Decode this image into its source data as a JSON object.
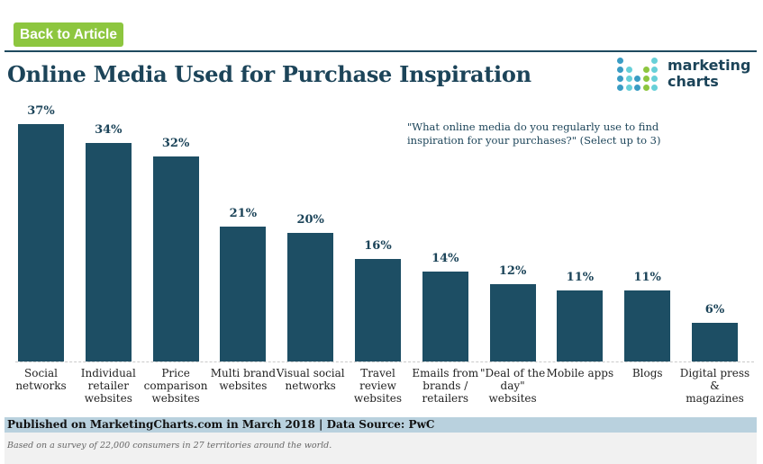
{
  "nav": {
    "back_label": "Back to Article",
    "back_color": "#8dc63f"
  },
  "header": {
    "title": "Online Media Used for Purchase Inspiration"
  },
  "logo": {
    "line1": "marketing",
    "line2": "charts"
  },
  "subtitle": "\"What online media do you regularly use to find inspiration for your purchases?\" (Select up to 3)",
  "footer": {
    "published": "Published on MarketingCharts.com in March 2018 | Data Source: PwC",
    "note": "Based on a survey of 22,000 consumers in 27 territories around the world."
  },
  "colors": {
    "bar": "#1d4e64",
    "title": "#1c4459",
    "pub_bar": "#b9d1de",
    "note_bar": "#f1f1f1"
  },
  "chart_data": {
    "type": "bar",
    "title": "Online Media Used for Purchase Inspiration",
    "subtitle": "\"What online media do you regularly use to find inspiration for your purchases?\" (Select up to 3)",
    "xlabel": "",
    "ylabel": "",
    "ylim": [
      0,
      40
    ],
    "grid": false,
    "legend": null,
    "categories": [
      "Social networks",
      "Individual retailer websites",
      "Price comparison websites",
      "Multi brand websites",
      "Visual social networks",
      "Travel review websites",
      "Emails from brands / retailers",
      "\"Deal of the day\" websites",
      "Mobile apps",
      "Blogs",
      "Digital press & magazines"
    ],
    "values": [
      37,
      34,
      32,
      21,
      20,
      16,
      14,
      12,
      11,
      11,
      6
    ],
    "value_labels": [
      "37%",
      "34%",
      "32%",
      "21%",
      "20%",
      "16%",
      "14%",
      "12%",
      "11%",
      "11%",
      "6%"
    ],
    "category_lines": [
      [
        "Social",
        "networks"
      ],
      [
        "Individual",
        "retailer",
        "websites"
      ],
      [
        "Price",
        "comparison",
        "websites"
      ],
      [
        "Multi brand",
        "websites"
      ],
      [
        "Visual social",
        "networks"
      ],
      [
        "Travel",
        "review",
        "websites"
      ],
      [
        "Emails from",
        "brands /",
        "retailers"
      ],
      [
        "\"Deal of the",
        "day\"",
        "websites"
      ],
      [
        "Mobile apps"
      ],
      [
        "Blogs"
      ],
      [
        "Digital press",
        "& magazines"
      ]
    ]
  }
}
